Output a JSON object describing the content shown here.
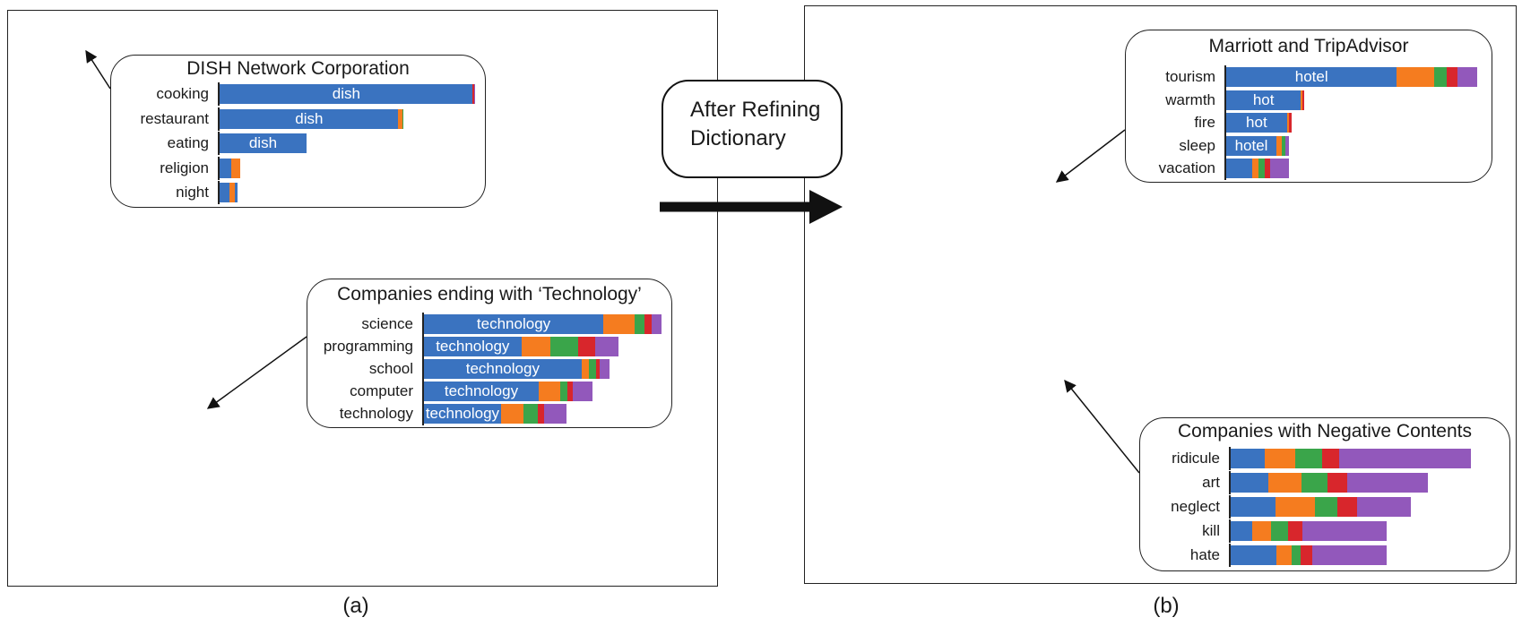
{
  "colors": {
    "blue": "#3a73c0",
    "orange": "#f57c1f",
    "green": "#3aa54a",
    "red": "#d8262c",
    "purple": "#9258bb",
    "highlight_red": "#f2272a",
    "highlight_ring": "#f47a22",
    "ellipse_red": "#f4a9ab",
    "ellipse_blue": "#9ba7d3"
  },
  "middle": {
    "refine_line1": "After Refining",
    "refine_line2": "Dictionary",
    "arrow_icon": "right-arrow"
  },
  "panel_a": {
    "caption": "(a)",
    "callout_top": {
      "title": "DISH Network Corporation",
      "rows": [
        {
          "label": "cooking",
          "inner": "dish",
          "segments": [
            [
              1.0,
              "blue"
            ],
            [
              0.004,
              "red"
            ],
            [
              0.004,
              "purple"
            ]
          ],
          "total": 1.0
        },
        {
          "label": "restaurant",
          "inner": "dish",
          "segments": [
            [
              0.94,
              "blue"
            ],
            [
              0.02,
              "orange"
            ],
            [
              0.006,
              "green"
            ]
          ],
          "total": 0.72
        },
        {
          "label": "eating",
          "inner": "dish",
          "segments": [
            [
              1.0,
              "blue"
            ]
          ],
          "total": 0.34
        },
        {
          "label": "religion",
          "inner": "",
          "segments": [
            [
              0.55,
              "blue"
            ],
            [
              0.45,
              "orange"
            ]
          ],
          "total": 0.08
        },
        {
          "label": "night",
          "inner": "",
          "segments": [
            [
              0.55,
              "blue"
            ],
            [
              0.3,
              "orange"
            ],
            [
              0.15,
              "blue"
            ]
          ],
          "total": 0.07
        }
      ]
    },
    "callout_bottom": {
      "title": "Companies ending with ‘Technology’",
      "rows": [
        {
          "label": "science",
          "inner": "technology",
          "segments": [
            [
              0.74,
              "blue"
            ],
            [
              0.13,
              "orange"
            ],
            [
              0.04,
              "green"
            ],
            [
              0.03,
              "red"
            ],
            [
              0.04,
              "purple"
            ]
          ],
          "total": 1.0
        },
        {
          "label": "programming",
          "inner": "technology",
          "segments": [
            [
              0.5,
              "blue"
            ],
            [
              0.15,
              "orange"
            ],
            [
              0.14,
              "green"
            ],
            [
              0.09,
              "red"
            ],
            [
              0.12,
              "purple"
            ]
          ],
          "total": 0.82
        },
        {
          "label": "school",
          "inner": "technology",
          "segments": [
            [
              0.85,
              "blue"
            ],
            [
              0.04,
              "orange"
            ],
            [
              0.04,
              "green"
            ],
            [
              0.02,
              "red"
            ],
            [
              0.05,
              "purple"
            ]
          ],
          "total": 0.78
        },
        {
          "label": "computer",
          "inner": "technology",
          "segments": [
            [
              0.68,
              "blue"
            ],
            [
              0.13,
              "orange"
            ],
            [
              0.04,
              "green"
            ],
            [
              0.03,
              "red"
            ],
            [
              0.12,
              "purple"
            ]
          ],
          "total": 0.71
        },
        {
          "label": "technology",
          "inner": "technology",
          "segments": [
            [
              0.54,
              "blue"
            ],
            [
              0.16,
              "orange"
            ],
            [
              0.1,
              "green"
            ],
            [
              0.04,
              "red"
            ],
            [
              0.16,
              "purple"
            ]
          ],
          "total": 0.6
        }
      ]
    }
  },
  "panel_b": {
    "caption": "(b)",
    "callout_top": {
      "title": "Marriott and TripAdvisor",
      "rows": [
        {
          "label": "tourism",
          "inner": "hotel",
          "segments": [
            [
              0.68,
              "blue"
            ],
            [
              0.15,
              "orange"
            ],
            [
              0.05,
              "green"
            ],
            [
              0.04,
              "red"
            ],
            [
              0.08,
              "purple"
            ]
          ],
          "total": 1.0
        },
        {
          "label": "warmth",
          "inner": "hot",
          "segments": [
            [
              0.96,
              "blue"
            ],
            [
              0.02,
              "orange"
            ],
            [
              0.02,
              "red"
            ]
          ],
          "total": 0.31
        },
        {
          "label": "fire",
          "inner": "hot",
          "segments": [
            [
              0.93,
              "blue"
            ],
            [
              0.03,
              "orange"
            ],
            [
              0.04,
              "red"
            ]
          ],
          "total": 0.26
        },
        {
          "label": "sleep",
          "inner": "hotel",
          "segments": [
            [
              0.8,
              "blue"
            ],
            [
              0.08,
              "orange"
            ],
            [
              0.06,
              "green"
            ],
            [
              0.06,
              "purple"
            ]
          ],
          "total": 0.25
        },
        {
          "label": "vacation",
          "inner": "",
          "segments": [
            [
              0.42,
              "blue"
            ],
            [
              0.1,
              "orange"
            ],
            [
              0.1,
              "green"
            ],
            [
              0.08,
              "red"
            ],
            [
              0.3,
              "purple"
            ]
          ],
          "total": 0.25
        }
      ]
    },
    "callout_bottom": {
      "title": "Companies with Negative Contents",
      "rows": [
        {
          "label": "ridicule",
          "inner": "",
          "segments": [
            [
              0.14,
              "blue"
            ],
            [
              0.13,
              "orange"
            ],
            [
              0.11,
              "green"
            ],
            [
              0.07,
              "red"
            ],
            [
              0.55,
              "purple"
            ]
          ],
          "total": 1.0
        },
        {
          "label": "art",
          "inner": "",
          "segments": [
            [
              0.19,
              "blue"
            ],
            [
              0.17,
              "orange"
            ],
            [
              0.13,
              "green"
            ],
            [
              0.1,
              "red"
            ],
            [
              0.41,
              "purple"
            ]
          ],
          "total": 0.82
        },
        {
          "label": "neglect",
          "inner": "",
          "segments": [
            [
              0.25,
              "blue"
            ],
            [
              0.22,
              "orange"
            ],
            [
              0.12,
              "green"
            ],
            [
              0.11,
              "red"
            ],
            [
              0.3,
              "purple"
            ]
          ],
          "total": 0.75
        },
        {
          "label": "kill",
          "inner": "",
          "segments": [
            [
              0.14,
              "blue"
            ],
            [
              0.12,
              "orange"
            ],
            [
              0.11,
              "green"
            ],
            [
              0.09,
              "red"
            ],
            [
              0.54,
              "purple"
            ]
          ],
          "total": 0.65
        },
        {
          "label": "hate",
          "inner": "",
          "segments": [
            [
              0.29,
              "blue"
            ],
            [
              0.1,
              "orange"
            ],
            [
              0.06,
              "green"
            ],
            [
              0.07,
              "red"
            ],
            [
              0.48,
              "purple"
            ]
          ],
          "total": 0.65
        }
      ]
    }
  }
}
